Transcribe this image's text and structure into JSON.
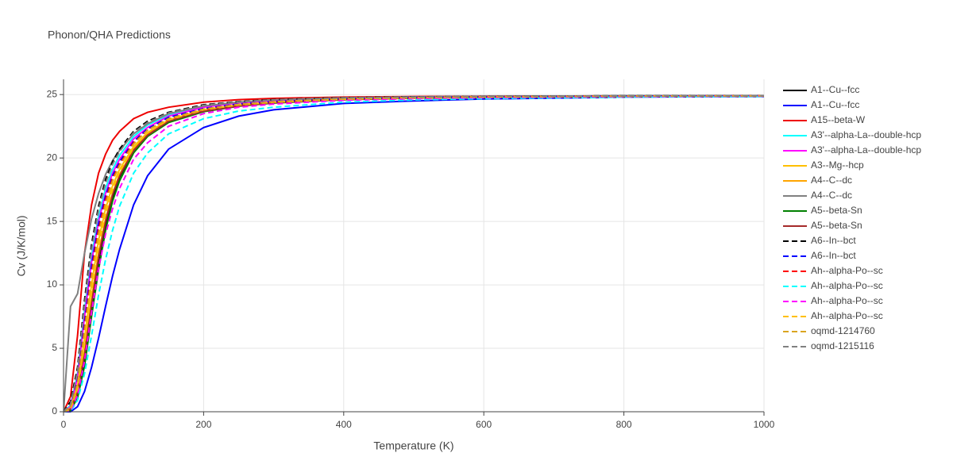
{
  "chart_data": {
    "type": "line",
    "title": "Phonon/QHA Predictions",
    "x_label": "Temperature (K)",
    "y_label": "Cv (J/K/mol)",
    "xlim": [
      0,
      1000
    ],
    "ylim": [
      0,
      26.2
    ],
    "xticks": [
      0,
      200,
      400,
      600,
      800,
      1000
    ],
    "yticks": [
      0,
      5,
      10,
      15,
      20,
      25
    ],
    "grid": true,
    "legend": "right",
    "x": [
      0,
      10,
      20,
      30,
      40,
      50,
      60,
      70,
      80,
      100,
      120,
      150,
      200,
      250,
      300,
      400,
      500,
      600,
      800,
      1000
    ],
    "series": [
      {
        "name": "A1--Cu--fcc",
        "color": "#000000",
        "dash": "solid",
        "values": [
          0,
          0.1,
          1.2,
          3.8,
          7.8,
          11.5,
          14.6,
          16.9,
          18.5,
          20.6,
          21.8,
          22.9,
          23.7,
          24.1,
          24.35,
          24.6,
          24.72,
          24.78,
          24.85,
          24.88
        ]
      },
      {
        "name": "A1--Cu--fcc",
        "color": "#0000ff",
        "dash": "solid",
        "values": [
          0,
          0,
          0.4,
          1.6,
          3.5,
          5.8,
          8.3,
          10.7,
          12.8,
          16.3,
          18.6,
          20.7,
          22.4,
          23.3,
          23.8,
          24.3,
          24.5,
          24.65,
          24.8,
          24.85
        ]
      },
      {
        "name": "A15--beta-W",
        "color": "#ee0000",
        "dash": "solid",
        "values": [
          0,
          1.2,
          6,
          12.5,
          16.3,
          18.8,
          20.3,
          21.4,
          22.1,
          23.1,
          23.6,
          24.0,
          24.4,
          24.6,
          24.7,
          24.8,
          24.85,
          24.87,
          24.9,
          24.92
        ]
      },
      {
        "name": "A3'--alpha-La--double-hcp",
        "color": "#00ffff",
        "dash": "solid",
        "values": [
          0,
          0.5,
          3.0,
          8.0,
          12.3,
          15.4,
          17.6,
          19.1,
          20.2,
          21.7,
          22.6,
          23.4,
          24.1,
          24.4,
          24.55,
          24.72,
          24.8,
          24.85,
          24.9,
          24.92
        ]
      },
      {
        "name": "A3'--alpha-La--double-hcp",
        "color": "#ff00ff",
        "dash": "solid",
        "values": [
          0,
          0.4,
          2.7,
          7.5,
          11.8,
          15.0,
          17.2,
          18.8,
          19.9,
          21.5,
          22.4,
          23.3,
          24.0,
          24.35,
          24.52,
          24.7,
          24.79,
          24.84,
          24.89,
          24.91
        ]
      },
      {
        "name": "A3--Mg--hcp",
        "color": "#ffbf00",
        "dash": "solid",
        "values": [
          0,
          0.3,
          2.0,
          5.8,
          10.0,
          13.5,
          16.0,
          17.8,
          19.1,
          20.9,
          22.0,
          23.0,
          23.8,
          24.2,
          24.4,
          24.65,
          24.76,
          24.82,
          24.87,
          24.9
        ]
      },
      {
        "name": "A4--C--dc",
        "color": "#ffa500",
        "dash": "solid",
        "values": [
          0,
          0.2,
          1.6,
          4.8,
          8.9,
          12.5,
          15.2,
          17.2,
          18.7,
          20.7,
          21.9,
          22.95,
          23.75,
          24.15,
          24.38,
          24.62,
          24.73,
          24.8,
          24.86,
          24.89
        ]
      },
      {
        "name": "A4--C--dc",
        "color": "#808080",
        "dash": "solid",
        "values": [
          0,
          8.3,
          9.3,
          12.5,
          15.2,
          17.2,
          18.7,
          19.8,
          20.6,
          21.9,
          22.7,
          23.5,
          24.1,
          24.4,
          24.6,
          24.75,
          24.82,
          24.86,
          24.9,
          24.92
        ]
      },
      {
        "name": "A5--beta-Sn",
        "color": "#008000",
        "dash": "solid",
        "values": [
          0,
          0.1,
          1.1,
          3.6,
          7.5,
          11.2,
          14.3,
          16.6,
          18.2,
          20.4,
          21.7,
          22.8,
          23.65,
          24.08,
          24.33,
          24.6,
          24.72,
          24.78,
          24.85,
          24.88
        ]
      },
      {
        "name": "A5--beta-Sn",
        "color": "#a52a2a",
        "dash": "solid",
        "values": [
          0,
          0.2,
          1.5,
          4.5,
          8.5,
          12.2,
          15.0,
          17.1,
          18.6,
          20.6,
          21.8,
          22.9,
          23.7,
          24.1,
          24.36,
          24.61,
          24.73,
          24.79,
          24.86,
          24.89
        ]
      },
      {
        "name": "A6--In--bct",
        "color": "#000000",
        "dash": "dash",
        "values": [
          0,
          0.8,
          3.5,
          8.8,
          13.2,
          16.2,
          18.3,
          19.7,
          20.7,
          22.1,
          22.9,
          23.6,
          24.2,
          24.45,
          24.6,
          24.75,
          24.82,
          24.86,
          24.9,
          24.92
        ]
      },
      {
        "name": "A6--In--bct",
        "color": "#0000ff",
        "dash": "dash",
        "values": [
          0,
          0.3,
          2.5,
          7.0,
          11.5,
          14.8,
          17.0,
          18.6,
          19.7,
          21.3,
          22.3,
          23.2,
          23.9,
          24.25,
          24.45,
          24.68,
          24.78,
          24.83,
          24.88,
          24.9
        ]
      },
      {
        "name": "Ah--alpha-Po--sc",
        "color": "#ff0000",
        "dash": "dash",
        "values": [
          0,
          0.3,
          2.3,
          6.6,
          11.0,
          14.4,
          16.7,
          18.4,
          19.5,
          21.2,
          22.2,
          23.1,
          23.85,
          24.22,
          24.43,
          24.67,
          24.77,
          24.83,
          24.88,
          24.9
        ]
      },
      {
        "name": "Ah--alpha-Po--sc",
        "color": "#00ffff",
        "dash": "dash",
        "values": [
          0,
          0.05,
          0.9,
          3.0,
          6.0,
          9.2,
          12.0,
          14.3,
          16.2,
          18.8,
          20.4,
          21.9,
          23.1,
          23.7,
          24.0,
          24.4,
          24.58,
          24.68,
          24.8,
          24.85
        ]
      },
      {
        "name": "Ah--alpha-Po--sc",
        "color": "#ff00ff",
        "dash": "dash",
        "values": [
          0,
          0.1,
          1.3,
          4.0,
          7.8,
          11.3,
          14.0,
          16.0,
          17.6,
          19.9,
          21.2,
          22.5,
          23.5,
          24.0,
          24.25,
          24.55,
          24.68,
          24.76,
          24.84,
          24.88
        ]
      },
      {
        "name": "Ah--alpha-Po--sc",
        "color": "#ffbf00",
        "dash": "dash",
        "values": [
          0,
          0.2,
          1.8,
          5.3,
          9.5,
          13.0,
          15.6,
          17.5,
          18.9,
          20.8,
          22.0,
          23.0,
          23.8,
          24.18,
          24.4,
          24.64,
          24.75,
          24.81,
          24.87,
          24.9
        ]
      },
      {
        "name": "oqmd-1214760",
        "color": "#daa520",
        "dash": "dash",
        "values": [
          0,
          0.3,
          2.2,
          6.3,
          10.6,
          14.0,
          16.4,
          18.2,
          19.4,
          21.1,
          22.2,
          23.1,
          23.85,
          24.22,
          24.43,
          24.67,
          24.77,
          24.83,
          24.88,
          24.9
        ]
      },
      {
        "name": "oqmd-1215116",
        "color": "#808080",
        "dash": "dash",
        "values": [
          0,
          0.6,
          3.2,
          8.4,
          12.8,
          15.9,
          18.0,
          19.5,
          20.5,
          22.0,
          22.8,
          23.55,
          24.15,
          24.43,
          24.58,
          24.74,
          24.81,
          24.86,
          24.9,
          24.92
        ]
      }
    ]
  }
}
